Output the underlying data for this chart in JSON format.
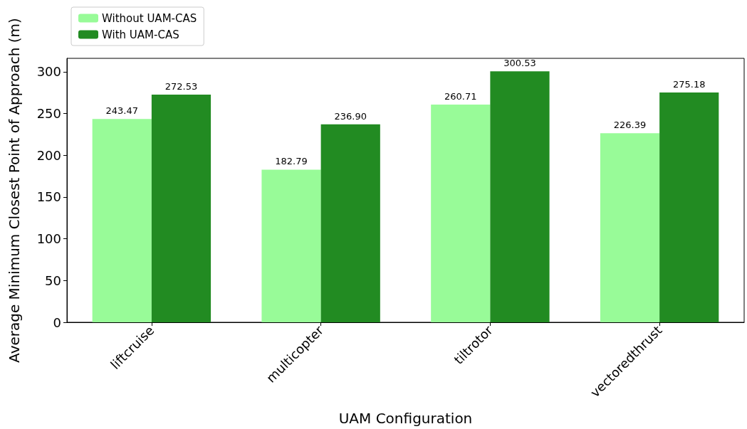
{
  "chart_data": {
    "type": "bar",
    "xlabel": "UAM Configuration",
    "ylabel": "Average Minimum Closest Point of Approach (m)",
    "categories": [
      "liftcruise",
      "multicopter",
      "tiltrotor",
      "vectoredthrust"
    ],
    "series": [
      {
        "name": "Without UAM-CAS",
        "color": "#98fb98",
        "values": [
          243.47,
          182.79,
          260.71,
          226.39
        ],
        "value_labels": [
          "243.47",
          "182.79",
          "260.71",
          "226.39"
        ]
      },
      {
        "name": "With UAM-CAS",
        "color": "#228b22",
        "values": [
          272.53,
          236.9,
          300.53,
          275.18
        ],
        "value_labels": [
          "272.53",
          "236.90",
          "300.53",
          "275.18"
        ]
      }
    ],
    "ylim": [
      0,
      316
    ],
    "yticks": [
      0,
      50,
      100,
      150,
      200,
      250,
      300
    ],
    "grid": false,
    "legend": "top left"
  }
}
